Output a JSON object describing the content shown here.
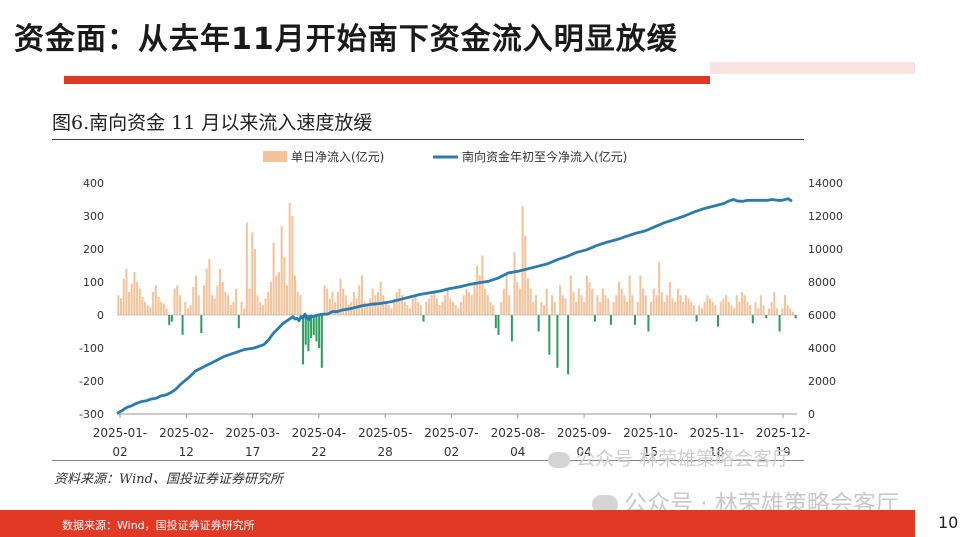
{
  "slide": {
    "title": "资金面：从去年11月开始南下资金流入明显放缓",
    "figure_title": "图6.南向资金 11 月以来流入速度放缓",
    "source": "资料来源：Wind、国投证券证券研究所",
    "watermark_1": "公众号 林荣雄策略会客厅",
    "watermark_2": "公众号 · 林荣雄策略会客厅",
    "footer": "数据来源：Wind，国投证券证券研究所",
    "page_number": "10"
  },
  "colors": {
    "accent_red": "#e03a26",
    "bar_positive": "#f5c29a",
    "bar_negative": "#2e9e5e",
    "line": "#2a7bb0"
  },
  "chart_data": {
    "type": "bar",
    "title": "图6.南向资金 11 月以来流入速度放缓",
    "legend_position": "top",
    "x_ticks": [
      {
        "line1": "2025-01-",
        "line2": "02"
      },
      {
        "line1": "2025-02-",
        "line2": "12"
      },
      {
        "line1": "2025-03-",
        "line2": "17"
      },
      {
        "line1": "2025-04-",
        "line2": "22"
      },
      {
        "line1": "2025-05-",
        "line2": "28"
      },
      {
        "line1": "2025-07-",
        "line2": "02"
      },
      {
        "line1": "2025-08-",
        "line2": "04"
      },
      {
        "line1": "2025-09-",
        "line2": "04"
      },
      {
        "line1": "2025-10-",
        "line2": "15"
      },
      {
        "line1": "2025-11-",
        "line2": "18"
      },
      {
        "line1": "2025-12-",
        "line2": "19"
      }
    ],
    "y_left": {
      "ticks": [
        400,
        300,
        200,
        100,
        0,
        -100,
        -200,
        -300
      ],
      "range": [
        -300,
        400
      ]
    },
    "y_right": {
      "ticks": [
        14000,
        12000,
        10000,
        8000,
        6000,
        4000,
        2000,
        0
      ],
      "range": [
        0,
        14000
      ]
    },
    "series": [
      {
        "name": "单日净流入(亿元)",
        "type": "bar",
        "values": [
          60,
          50,
          110,
          140,
          70,
          95,
          130,
          100,
          80,
          55,
          40,
          30,
          25,
          70,
          90,
          55,
          40,
          35,
          20,
          -30,
          -20,
          80,
          90,
          60,
          -60,
          40,
          20,
          30,
          85,
          120,
          60,
          -55,
          90,
          140,
          170,
          60,
          50,
          90,
          140,
          100,
          70,
          60,
          30,
          40,
          80,
          -40,
          40,
          20,
          280,
          80,
          250,
          200,
          60,
          40,
          30,
          50,
          70,
          100,
          220,
          120,
          130,
          270,
          175,
          90,
          340,
          300,
          120,
          70,
          60,
          -150,
          -90,
          -110,
          -70,
          -60,
          -80,
          -100,
          -160,
          90,
          80,
          50,
          70,
          40,
          70,
          110,
          80,
          60,
          30,
          40,
          70,
          50,
          90,
          120,
          40,
          30,
          50,
          80,
          60,
          70,
          100,
          60,
          40,
          30,
          20,
          50,
          70,
          80,
          60,
          40,
          30,
          20,
          50,
          60,
          40,
          30,
          -20,
          40,
          50,
          60,
          70,
          50,
          30,
          40,
          60,
          80,
          50,
          40,
          30,
          20,
          40,
          60,
          80,
          70,
          60,
          100,
          150,
          120,
          180,
          80,
          60,
          40,
          30,
          -40,
          -60,
          40,
          80,
          120,
          60,
          -80,
          190,
          100,
          80,
          330,
          240,
          110,
          80,
          40,
          60,
          -50,
          40,
          30,
          80,
          -120,
          60,
          40,
          -160,
          90,
          60,
          50,
          -180,
          120,
          70,
          40,
          80,
          60,
          40,
          120,
          100,
          80,
          -20,
          60,
          40,
          80,
          60,
          50,
          -30,
          40,
          60,
          100,
          80,
          60,
          40,
          120,
          60,
          -30,
          40,
          120,
          80,
          60,
          -50,
          40,
          80,
          60,
          160,
          70,
          40,
          60,
          100,
          50,
          40,
          80,
          60,
          40,
          60,
          50,
          40,
          30,
          -20,
          30,
          20,
          40,
          60,
          50,
          40,
          30,
          -35,
          40,
          50,
          60,
          40,
          30,
          20,
          60,
          40,
          70,
          60,
          40,
          30,
          -25,
          40,
          20,
          60,
          30,
          -10,
          20,
          40,
          70,
          20,
          -50,
          20,
          60,
          30,
          20,
          10,
          -10
        ]
      },
      {
        "name": "南向资金年初至今净流入(亿元)",
        "type": "line",
        "points": [
          [
            0,
            50
          ],
          [
            5,
            200
          ],
          [
            10,
            400
          ],
          [
            15,
            500
          ],
          [
            20,
            650
          ],
          [
            25,
            750
          ],
          [
            30,
            800
          ],
          [
            35,
            900
          ],
          [
            40,
            950
          ],
          [
            45,
            1100
          ],
          [
            50,
            1150
          ],
          [
            55,
            1300
          ],
          [
            60,
            1500
          ],
          [
            65,
            1800
          ],
          [
            70,
            2050
          ],
          [
            75,
            2300
          ],
          [
            80,
            2600
          ],
          [
            85,
            2750
          ],
          [
            90,
            2900
          ],
          [
            95,
            3050
          ],
          [
            100,
            3200
          ],
          [
            110,
            3500
          ],
          [
            120,
            3700
          ],
          [
            130,
            3900
          ],
          [
            140,
            4000
          ],
          [
            150,
            4200
          ],
          [
            155,
            4500
          ],
          [
            160,
            4900
          ],
          [
            165,
            5200
          ],
          [
            170,
            5500
          ],
          [
            175,
            5700
          ],
          [
            180,
            5900
          ],
          [
            182,
            5750
          ],
          [
            184,
            5800
          ],
          [
            186,
            5650
          ],
          [
            188,
            5900
          ],
          [
            190,
            5800
          ],
          [
            192,
            6050
          ],
          [
            194,
            5900
          ],
          [
            196,
            5700
          ],
          [
            198,
            5950
          ],
          [
            200,
            5900
          ],
          [
            205,
            6000
          ],
          [
            210,
            6050
          ],
          [
            215,
            6050
          ],
          [
            220,
            6200
          ],
          [
            225,
            6200
          ],
          [
            230,
            6300
          ],
          [
            240,
            6400
          ],
          [
            250,
            6550
          ],
          [
            260,
            6650
          ],
          [
            270,
            6700
          ],
          [
            280,
            6800
          ],
          [
            290,
            6950
          ],
          [
            300,
            7100
          ],
          [
            310,
            7250
          ],
          [
            320,
            7350
          ],
          [
            330,
            7450
          ],
          [
            340,
            7600
          ],
          [
            350,
            7700
          ],
          [
            360,
            7850
          ],
          [
            370,
            7950
          ],
          [
            380,
            8050
          ],
          [
            390,
            8250
          ],
          [
            400,
            8550
          ],
          [
            410,
            8650
          ],
          [
            420,
            8800
          ],
          [
            430,
            8950
          ],
          [
            440,
            9100
          ],
          [
            450,
            9350
          ],
          [
            460,
            9550
          ],
          [
            470,
            9800
          ],
          [
            480,
            9950
          ],
          [
            490,
            10200
          ],
          [
            500,
            10400
          ],
          [
            510,
            10550
          ],
          [
            520,
            10750
          ],
          [
            530,
            10950
          ],
          [
            540,
            11100
          ],
          [
            550,
            11350
          ],
          [
            560,
            11600
          ],
          [
            570,
            11800
          ],
          [
            580,
            12000
          ],
          [
            590,
            12250
          ],
          [
            600,
            12450
          ],
          [
            610,
            12600
          ],
          [
            620,
            12750
          ],
          [
            625,
            12900
          ],
          [
            630,
            13000
          ],
          [
            635,
            12900
          ],
          [
            640,
            12900
          ],
          [
            645,
            12950
          ],
          [
            650,
            12950
          ],
          [
            655,
            12950
          ],
          [
            660,
            12950
          ],
          [
            665,
            12950
          ],
          [
            670,
            13000
          ],
          [
            675,
            12950
          ],
          [
            680,
            12950
          ],
          [
            683,
            13000
          ],
          [
            686,
            13050
          ],
          [
            690,
            12900
          ]
        ],
        "x_max": 690
      }
    ]
  }
}
